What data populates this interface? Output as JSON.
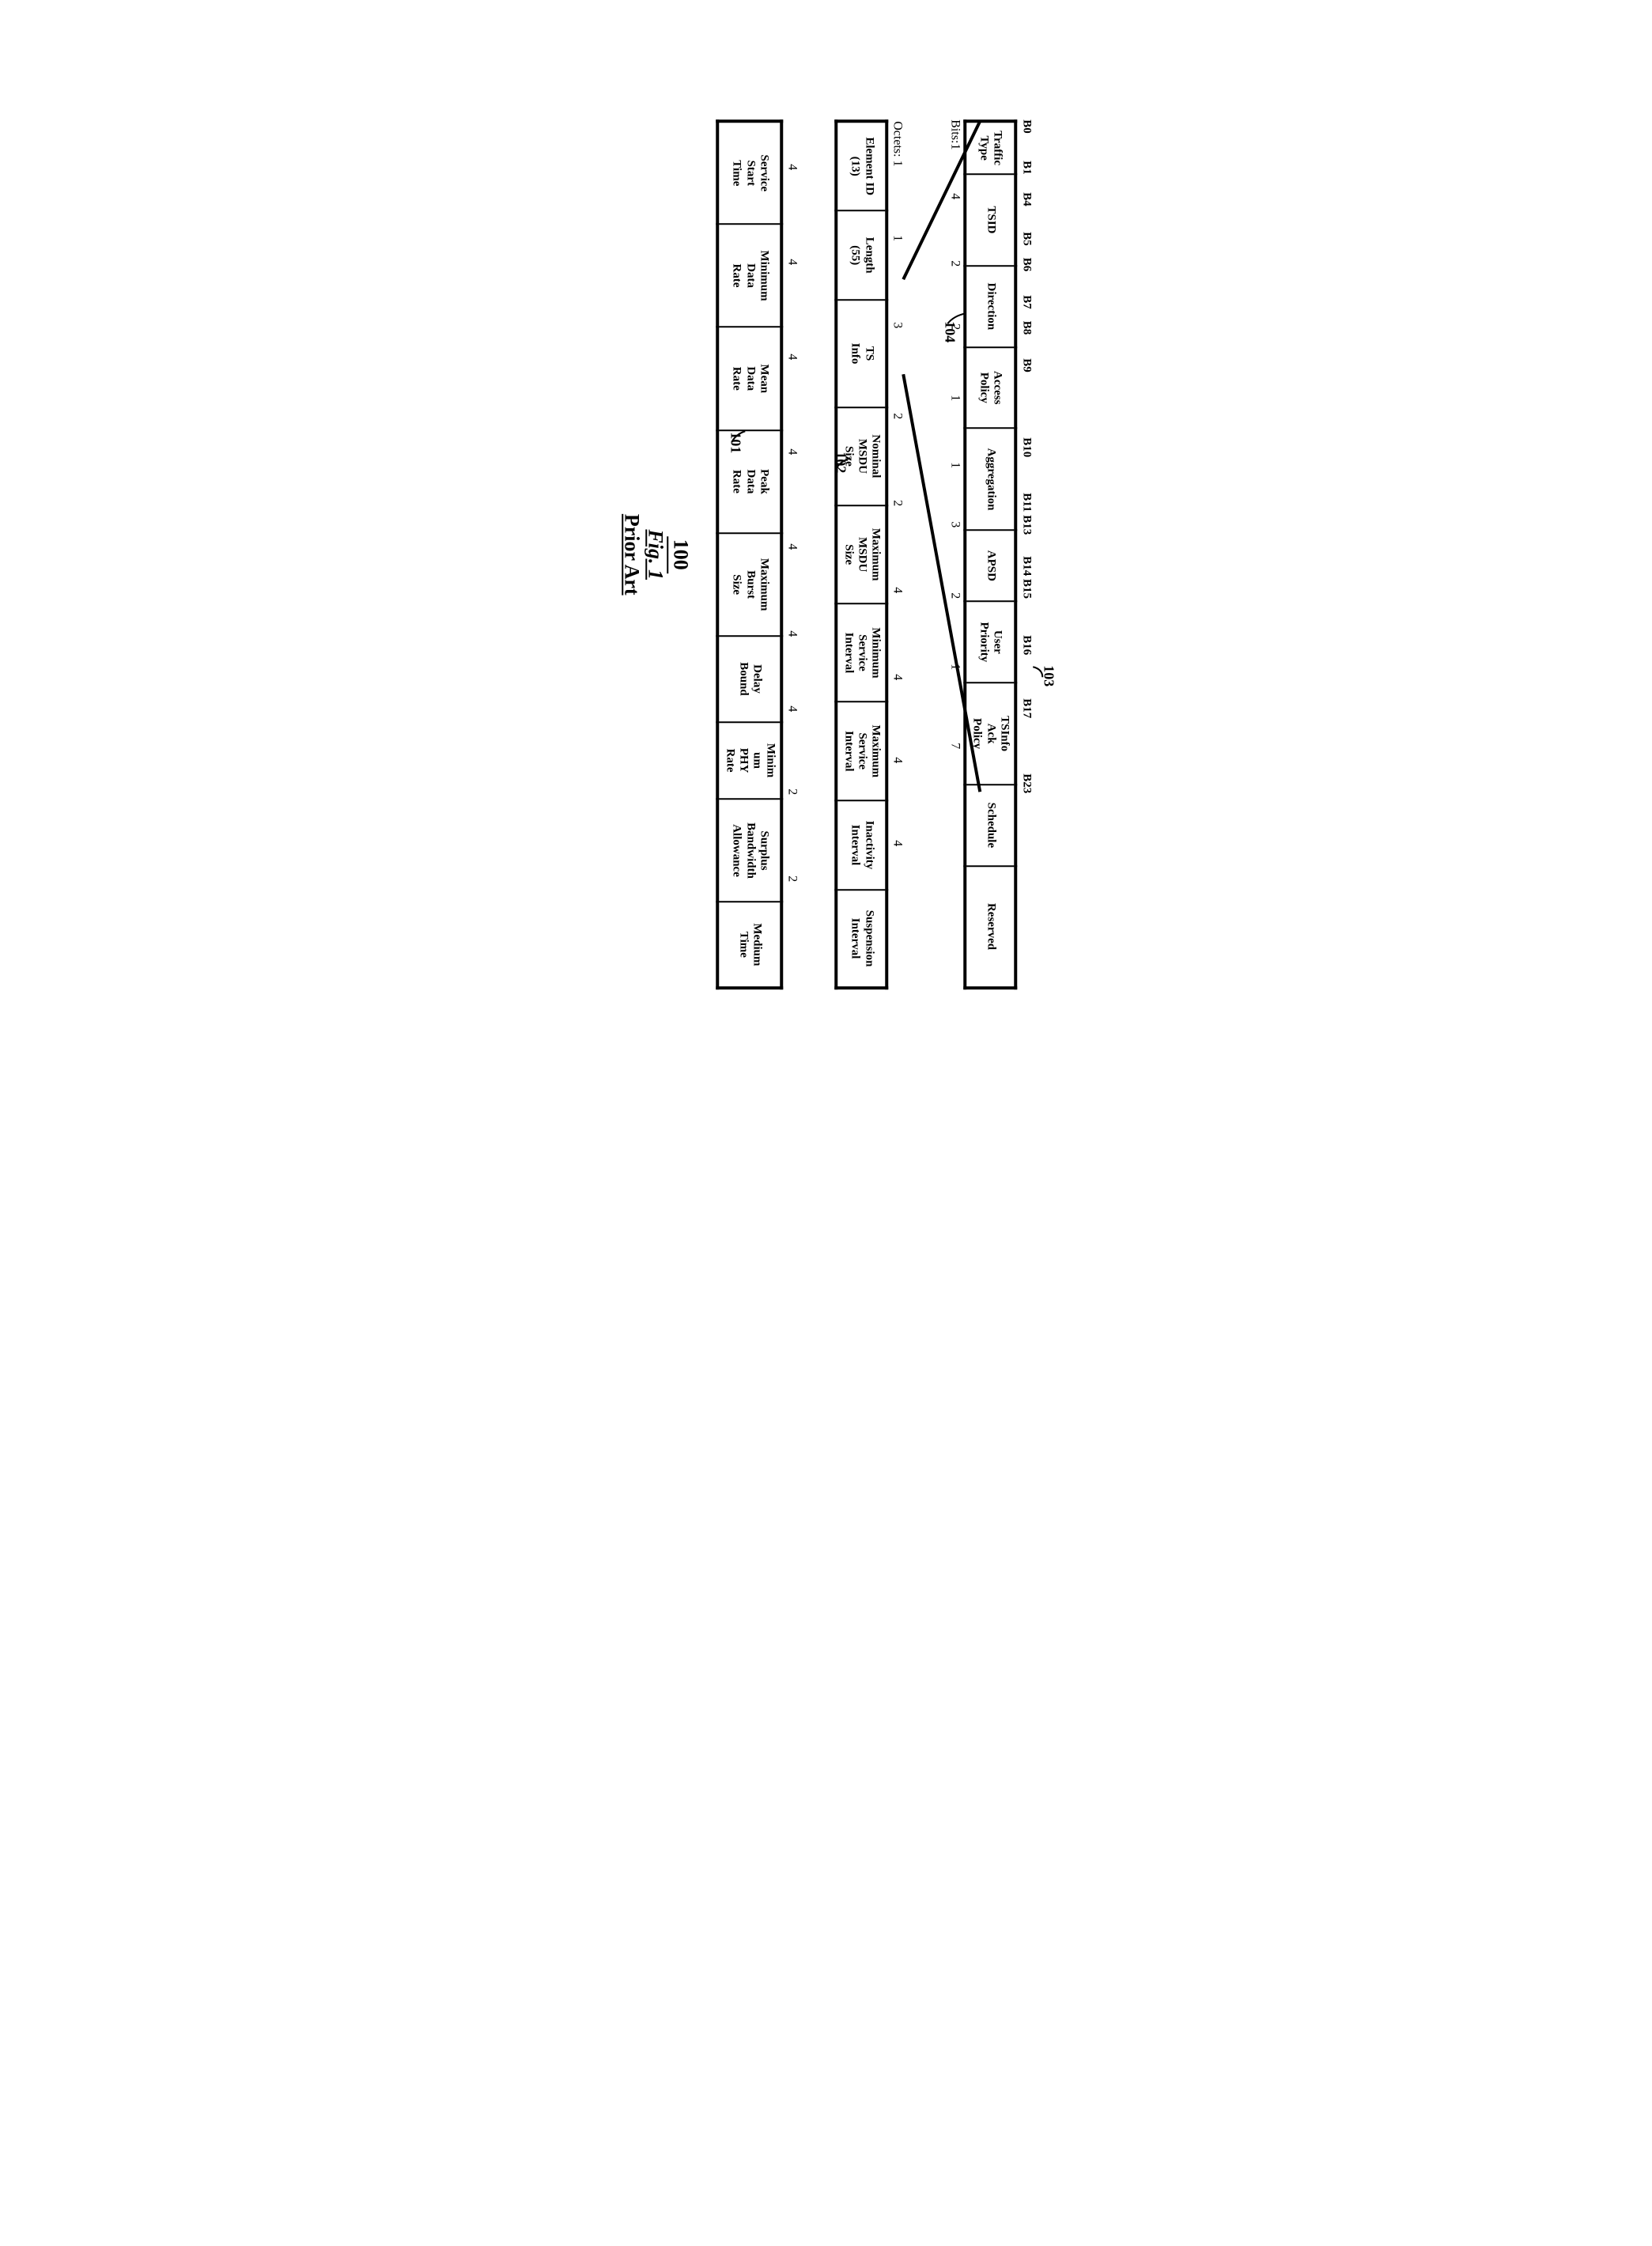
{
  "callouts": {
    "c103": "103",
    "c104": "104",
    "c102": "102",
    "c101": "101",
    "c100": "100"
  },
  "caption": {
    "fig": "Fig. 1",
    "prior": "Prior Art"
  },
  "row1": {
    "bit_markers": [
      "B0",
      "B1",
      "B4",
      "B5",
      "B6",
      "B7",
      "B8",
      "B9",
      "B10",
      "B11",
      "B13",
      "B14",
      "B15",
      "B16",
      "B17",
      "B23"
    ],
    "cells": [
      {
        "label": "Traffic Type",
        "w": 52
      },
      {
        "label": "TSID",
        "w": 90
      },
      {
        "label": "Direction",
        "w": 80
      },
      {
        "label": "Access Policy",
        "w": 80
      },
      {
        "label": "Aggregation",
        "w": 100
      },
      {
        "label": "APSD",
        "w": 70
      },
      {
        "label": "User Priority",
        "w": 80
      },
      {
        "label": "TSInfo Ack Policy",
        "w": 100
      },
      {
        "label": "Schedule",
        "w": 80
      },
      {
        "label": "Reserved",
        "w": 120
      }
    ],
    "bits_prefix": "Bits:",
    "counts": [
      "1",
      "4",
      "2",
      "2",
      "1",
      "1",
      "3",
      "2",
      "1",
      "7"
    ]
  },
  "row2": {
    "octets_prefix": "Octets:",
    "cells": [
      {
        "label": "Element ID (13)",
        "w": 100,
        "cnt": "1",
        "dashed_left": true
      },
      {
        "label": "Length (55)",
        "w": 100,
        "cnt": "1"
      },
      {
        "label": "TS Info",
        "w": 120,
        "cnt": "3"
      },
      {
        "label": "Nominal MSDU Size",
        "w": 110,
        "cnt": "2"
      },
      {
        "label": "Maximum MSDU Size",
        "w": 110,
        "cnt": "2"
      },
      {
        "label": "Minimum Service Interval",
        "w": 110,
        "cnt": "4"
      },
      {
        "label": "Maximum Service Interval",
        "w": 110,
        "cnt": "4"
      },
      {
        "label": "Inactivity Interval",
        "w": 100,
        "cnt": "4"
      },
      {
        "label": "Suspension Interval",
        "w": 110,
        "cnt": "4",
        "dashed_right": true
      }
    ]
  },
  "row3": {
    "cells": [
      {
        "label": "Service Start Time",
        "w": 120,
        "cnt": "4",
        "dashed_left": true,
        "dashed_top": true
      },
      {
        "label": "Minimum Data Rate",
        "w": 120,
        "cnt": "4"
      },
      {
        "label": "Mean Data Rate",
        "w": 120,
        "cnt": "4"
      },
      {
        "label": "Peak Data Rate",
        "w": 120,
        "cnt": "4"
      },
      {
        "label": "Maximum Burst Size",
        "w": 120,
        "cnt": "4"
      },
      {
        "label": "Delay Bound",
        "w": 100,
        "cnt": "4"
      },
      {
        "label": "Minim um PHY Rate",
        "w": 90,
        "cnt": "4"
      },
      {
        "label": "Surplus Bandwidth Allowance",
        "w": 120,
        "cnt": "2"
      },
      {
        "label": "Medium Time",
        "w": 100,
        "cnt": "2"
      }
    ]
  }
}
